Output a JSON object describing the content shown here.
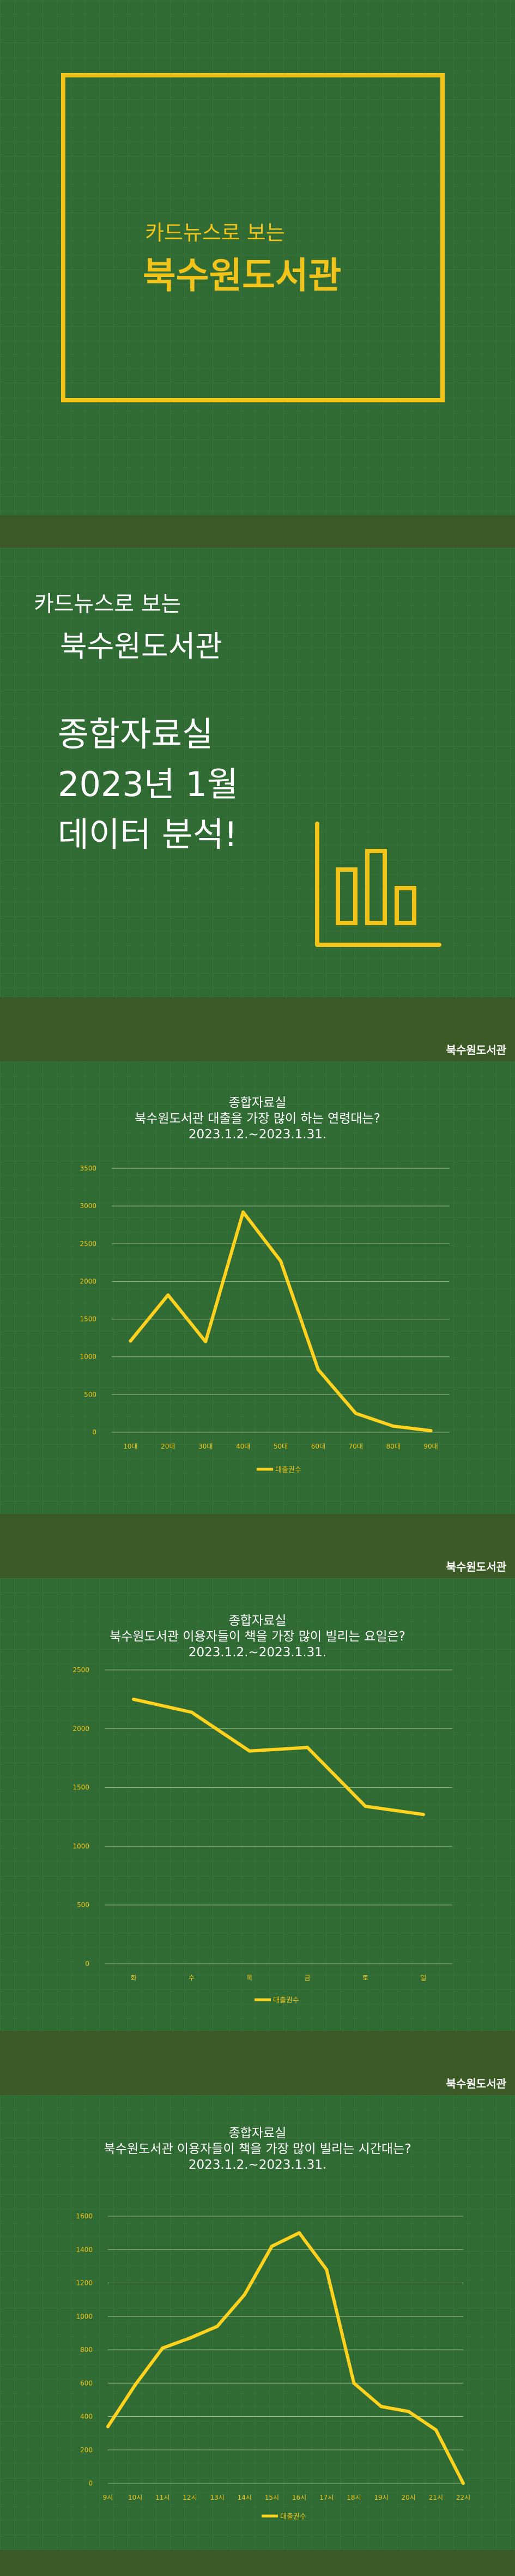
{
  "cover": {
    "subtitle": "카드뉴스로 보는",
    "title": "북수원도서관"
  },
  "intro": {
    "subtitle": "카드뉴스로 보는",
    "title": "북수원도서관",
    "lines": [
      "종합자료실",
      "2023년 1월",
      "데이터 분석!"
    ],
    "icon": "bar-chart-icon"
  },
  "strip_label": "북수원도서관",
  "colors": {
    "background": "#2f6b33",
    "strip": "#3b5a25",
    "accent": "#f2c41b",
    "line": "#ffd21f",
    "text": "#ffffff"
  },
  "chart_data": [
    {
      "type": "line",
      "title": [
        "종합자료실",
        "북수원도서관 대출을 가장 많이 하는 연령대는?",
        "2023.1.2.~2023.1.31."
      ],
      "categories": [
        "10대",
        "20대",
        "30대",
        "40대",
        "50대",
        "60대",
        "70대",
        "80대",
        "90대"
      ],
      "series": [
        {
          "name": "대출권수",
          "values": [
            1210,
            1820,
            1200,
            2920,
            2270,
            830,
            250,
            80,
            20
          ]
        }
      ],
      "ylim": [
        0,
        3500
      ],
      "yticks": [
        "0",
        "500",
        "1000",
        "1500",
        "2000",
        "2500",
        "3000",
        "3500"
      ],
      "grid": true,
      "legend": "bottom"
    },
    {
      "type": "line",
      "title": [
        "종합자료실",
        "북수원도서관 이용자들이 책을 가장 많이 빌리는 요일은?",
        "2023.1.2.~2023.1.31."
      ],
      "categories": [
        "화",
        "수",
        "목",
        "금",
        "토",
        "일"
      ],
      "series": [
        {
          "name": "대출권수",
          "values": [
            2250,
            2140,
            1810,
            1840,
            1340,
            1270
          ]
        }
      ],
      "ylim": [
        0,
        2500
      ],
      "yticks": [
        "0",
        "500",
        "1000",
        "1500",
        "2000",
        "2500"
      ],
      "grid": true,
      "legend": "bottom"
    },
    {
      "type": "line",
      "title": [
        "종합자료실",
        "북수원도서관 이용자들이 책을 가장 많이 빌리는 시간대는?",
        "2023.1.2.~2023.1.31."
      ],
      "categories": [
        "9시",
        "10시",
        "11시",
        "12시",
        "13시",
        "14시",
        "15시",
        "16시",
        "17시",
        "18시",
        "19시",
        "20시",
        "21시",
        "22시"
      ],
      "series": [
        {
          "name": "대출권수",
          "values": [
            340,
            590,
            810,
            870,
            940,
            1130,
            1420,
            1500,
            1280,
            600,
            460,
            430,
            320,
            0
          ]
        }
      ],
      "ylim": [
        0,
        1600
      ],
      "yticks": [
        "0",
        "200",
        "400",
        "600",
        "800",
        "1000",
        "1200",
        "1400",
        "1600"
      ],
      "grid": true,
      "legend": "bottom"
    }
  ]
}
